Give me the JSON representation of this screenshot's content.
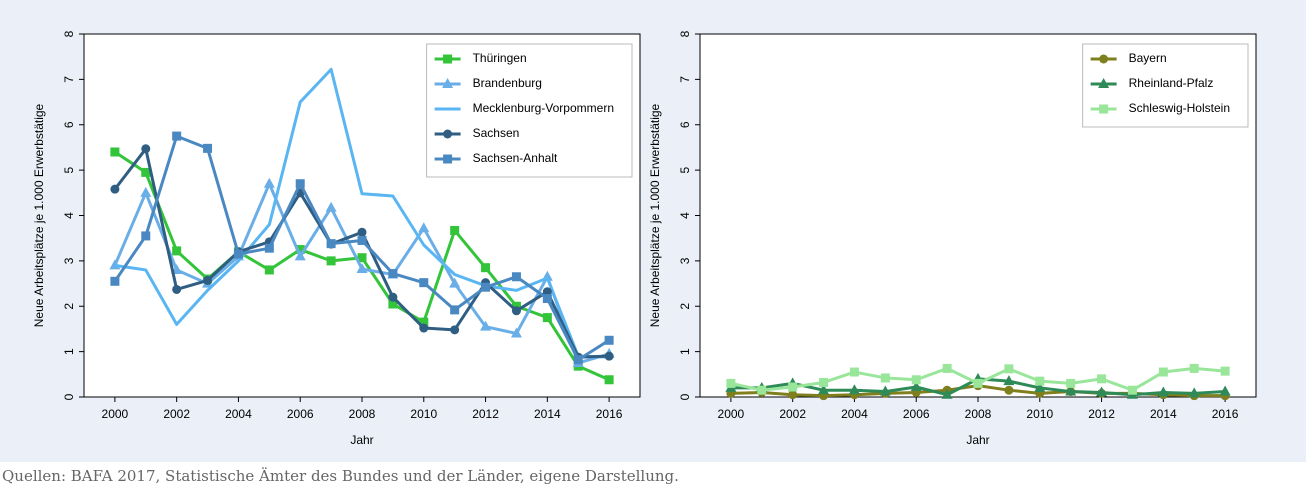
{
  "chart_data": [
    {
      "type": "line",
      "xlabel": "Jahr",
      "ylabel": "Neue Arbeitsplätze je 1.000 Erwerbstätige",
      "x": [
        2000,
        2001,
        2002,
        2003,
        2004,
        2005,
        2006,
        2007,
        2008,
        2009,
        2010,
        2011,
        2012,
        2013,
        2014,
        2015,
        2016
      ],
      "xlim": [
        1999,
        2017
      ],
      "xticks": [
        2000,
        2002,
        2004,
        2006,
        2008,
        2010,
        2012,
        2014,
        2016
      ],
      "ylim": [
        0,
        8
      ],
      "yticks": [
        0,
        1,
        2,
        3,
        4,
        5,
        6,
        7,
        8
      ],
      "legend": "upper right",
      "series": [
        {
          "name": "Thüringen",
          "color": "#33c43a",
          "marker": "square",
          "values": [
            5.4,
            4.95,
            3.22,
            2.6,
            3.2,
            2.8,
            3.25,
            3.0,
            3.07,
            2.05,
            1.65,
            3.67,
            2.85,
            2.0,
            1.75,
            0.68,
            0.38
          ]
        },
        {
          "name": "Brandenburg",
          "color": "#6aaee8",
          "marker": "triangle",
          "values": [
            2.9,
            4.5,
            2.8,
            2.5,
            3.1,
            4.7,
            3.1,
            4.17,
            2.82,
            2.7,
            3.72,
            2.5,
            1.55,
            1.4,
            2.65,
            0.75,
            0.95
          ]
        },
        {
          "name": "Mecklenburg-Vorpommern",
          "color": "#5ab6f2",
          "marker": "none",
          "values": [
            2.9,
            2.8,
            1.6,
            2.35,
            3.0,
            3.8,
            6.5,
            7.22,
            4.48,
            4.43,
            3.35,
            2.7,
            2.45,
            2.35,
            2.62,
            0.9,
            0.88
          ]
        },
        {
          "name": "Sachsen",
          "color": "#2f5e82",
          "marker": "circle",
          "values": [
            4.58,
            5.47,
            2.37,
            2.57,
            3.2,
            3.42,
            4.5,
            3.37,
            3.63,
            2.2,
            1.52,
            1.48,
            2.52,
            1.9,
            2.32,
            0.88,
            0.9
          ]
        },
        {
          "name": "Sachsen-Anhalt",
          "color": "#4a88c2",
          "marker": "square",
          "values": [
            2.55,
            3.55,
            5.75,
            5.48,
            3.15,
            3.28,
            4.7,
            3.38,
            3.45,
            2.72,
            2.52,
            1.92,
            2.42,
            2.65,
            2.17,
            0.82,
            1.25
          ]
        }
      ]
    },
    {
      "type": "line",
      "xlabel": "Jahr",
      "ylabel": "Neue Arbeitsplätze je 1.000 Erwerbstätige",
      "x": [
        2000,
        2001,
        2002,
        2003,
        2004,
        2005,
        2006,
        2007,
        2008,
        2009,
        2010,
        2011,
        2012,
        2013,
        2014,
        2015,
        2016
      ],
      "xlim": [
        1999,
        2017
      ],
      "xticks": [
        2000,
        2002,
        2004,
        2006,
        2008,
        2010,
        2012,
        2014,
        2016
      ],
      "ylim": [
        0,
        8
      ],
      "yticks": [
        0,
        1,
        2,
        3,
        4,
        5,
        6,
        7,
        8
      ],
      "legend": "upper right",
      "series": [
        {
          "name": "Bayern",
          "color": "#7f7f1e",
          "marker": "circle",
          "values": [
            0.08,
            0.1,
            0.05,
            0.03,
            0.05,
            0.08,
            0.1,
            0.15,
            0.25,
            0.15,
            0.08,
            0.12,
            0.08,
            0.08,
            0.05,
            0.03,
            0.03
          ]
        },
        {
          "name": "Rheinland-Pfalz",
          "color": "#2e8b57",
          "marker": "triangle",
          "values": [
            0.2,
            0.2,
            0.3,
            0.15,
            0.15,
            0.12,
            0.22,
            0.05,
            0.4,
            0.35,
            0.2,
            0.12,
            0.1,
            0.05,
            0.1,
            0.08,
            0.12
          ]
        },
        {
          "name": "Schleswig-Holstein",
          "color": "#99e69b",
          "marker": "square",
          "values": [
            0.3,
            0.15,
            0.22,
            0.32,
            0.55,
            0.42,
            0.38,
            0.63,
            0.3,
            0.62,
            0.35,
            0.3,
            0.4,
            0.15,
            0.55,
            0.63,
            0.57
          ]
        }
      ]
    }
  ],
  "caption": "Quellen: BAFA 2017, Statistische Ämter des Bundes und der Länder, eigene Darstellung."
}
